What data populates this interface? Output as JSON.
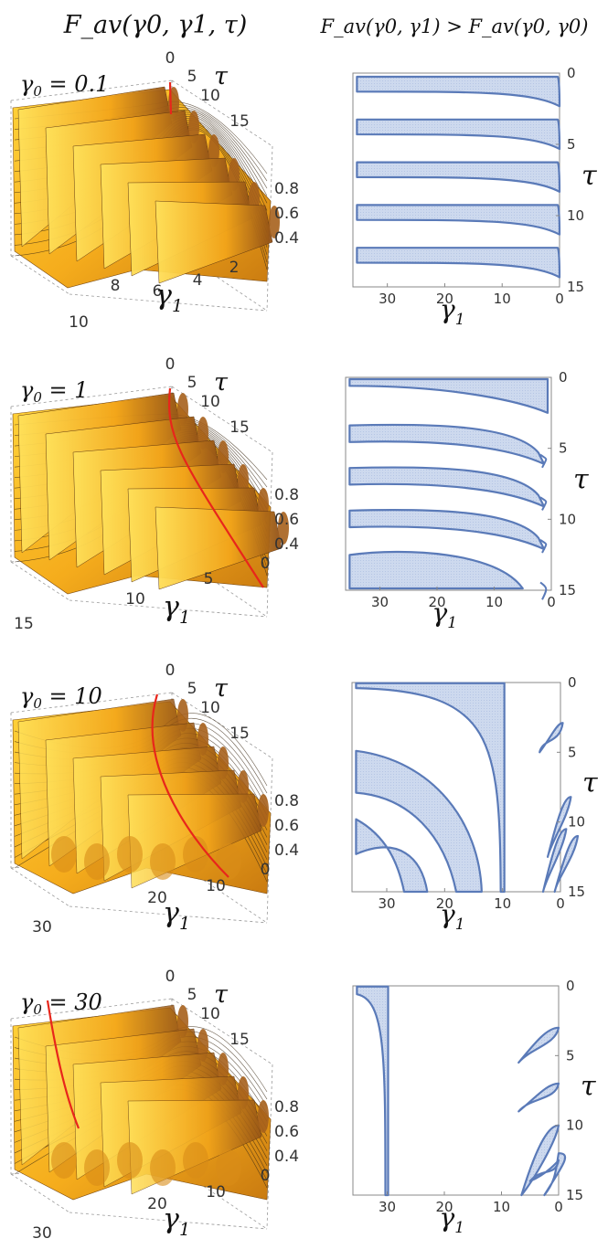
{
  "header": {
    "left_title": "F_av(γ0, γ1, τ)",
    "right_title": "F_av(γ0, γ1) > F_av(γ0, γ0)"
  },
  "colors": {
    "surface": "#f7b51e",
    "surface_dark": "#d58a12",
    "ridge_shadow": "#a6601c",
    "red_line": "#e8261b",
    "region_fill": "#c7d5ec",
    "region_stroke": "#5a7ab8",
    "frame": "#999999"
  },
  "chart_data": [
    {
      "type": "surface3d",
      "panel": "left",
      "gamma0_label": "γ0 = 0.1",
      "tau_ticks": [
        "0",
        "5",
        "10",
        "15"
      ],
      "z_ticks": [
        "0.8",
        "0.6",
        "0.4"
      ],
      "gamma1_ticks": [
        "10",
        "8",
        "6",
        "4",
        "2"
      ],
      "tau_axis": "τ",
      "gamma1_axis": "γ1"
    },
    {
      "type": "region",
      "panel": "right",
      "gamma0": 0.1,
      "xlim": [
        36,
        0
      ],
      "ylim": [
        0,
        15
      ],
      "x_ticks": [
        "30",
        "20",
        "10",
        "0"
      ],
      "y_ticks": [
        "0",
        "5",
        "10",
        "15"
      ],
      "xlabel": "γ1",
      "ylabel": "τ",
      "bands": [
        {
          "tau_start": 0.0,
          "tau_end": 1.3
        },
        {
          "tau_start": 3.0,
          "tau_end": 4.3
        },
        {
          "tau_start": 6.0,
          "tau_end": 7.3
        },
        {
          "tau_start": 9.0,
          "tau_end": 10.3
        },
        {
          "tau_start": 12.0,
          "tau_end": 13.3
        }
      ]
    },
    {
      "type": "surface3d",
      "panel": "left",
      "gamma0_label": "γ0 = 1",
      "tau_ticks": [
        "0",
        "5",
        "10",
        "15"
      ],
      "z_ticks": [
        "0.8",
        "0.6",
        "0.4"
      ],
      "gamma1_ticks": [
        "15",
        "10",
        "5",
        "0"
      ],
      "tau_axis": "τ",
      "gamma1_axis": "γ1"
    },
    {
      "type": "region",
      "panel": "right",
      "gamma0": 1,
      "xlim": [
        36,
        0
      ],
      "ylim": [
        0,
        15
      ],
      "x_ticks": [
        "30",
        "20",
        "10",
        "0"
      ],
      "y_ticks": [
        "0",
        "5",
        "10",
        "15"
      ],
      "xlabel": "γ1",
      "ylabel": "τ",
      "bands": [
        {
          "tau_start": 0.0,
          "tau_end": 0.7
        },
        {
          "tau_start": 3.0,
          "tau_end": 4.3
        },
        {
          "tau_start": 6.0,
          "tau_end": 7.3
        },
        {
          "tau_start": 9.0,
          "tau_end": 10.3
        },
        {
          "tau_start": 12.0,
          "tau_end": 13.6
        }
      ]
    },
    {
      "type": "surface3d",
      "panel": "left",
      "gamma0_label": "γ0 = 10",
      "tau_ticks": [
        "0",
        "5",
        "10",
        "15"
      ],
      "z_ticks": [
        "0.8",
        "0.6",
        "0.4"
      ],
      "gamma1_ticks": [
        "30",
        "20",
        "10",
        "0"
      ],
      "tau_axis": "τ",
      "gamma1_axis": "γ1"
    },
    {
      "type": "region",
      "panel": "right",
      "gamma0": 10,
      "xlim": [
        36,
        0
      ],
      "ylim": [
        0,
        15
      ],
      "x_ticks": [
        "30",
        "20",
        "10",
        "0"
      ],
      "y_ticks": [
        "0",
        "5",
        "10",
        "15"
      ],
      "xlabel": "γ1",
      "ylabel": "τ",
      "notable_gamma1": 10
    },
    {
      "type": "surface3d",
      "panel": "left",
      "gamma0_label": "γ0 = 30",
      "tau_ticks": [
        "0",
        "5",
        "10",
        "15"
      ],
      "z_ticks": [
        "0.8",
        "0.6",
        "0.4"
      ],
      "gamma1_ticks": [
        "30",
        "20",
        "10",
        "0"
      ],
      "tau_axis": "τ",
      "gamma1_axis": "γ1"
    },
    {
      "type": "region",
      "panel": "right",
      "gamma0": 30,
      "xlim": [
        36,
        0
      ],
      "ylim": [
        0,
        15
      ],
      "x_ticks": [
        "30",
        "20",
        "10",
        "0"
      ],
      "y_ticks": [
        "0",
        "5",
        "10",
        "15"
      ],
      "xlabel": "γ1",
      "ylabel": "τ",
      "notable_gamma1": 30
    }
  ]
}
